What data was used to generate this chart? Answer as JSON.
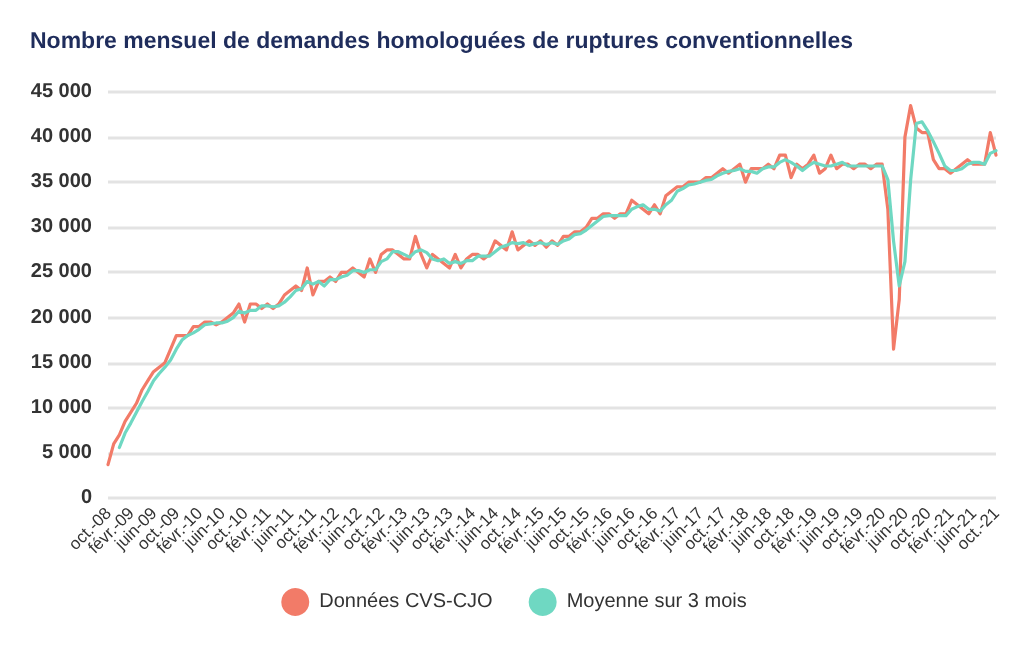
{
  "chart_data": {
    "type": "line",
    "title": "Nombre mensuel de demandes homologuées de ruptures conventionnelles",
    "categories": [
      "oct.-08",
      null,
      null,
      null,
      "févr.-09",
      null,
      null,
      null,
      "juin-09",
      null,
      null,
      null,
      "oct.-09",
      null,
      null,
      null,
      "févr.-10",
      null,
      null,
      null,
      "juin-10",
      null,
      null,
      null,
      "oct.-10",
      null,
      null,
      null,
      "févr.-11",
      null,
      null,
      null,
      "juin-11",
      null,
      null,
      null,
      "oct.-11",
      null,
      null,
      null,
      "févr.-12",
      null,
      null,
      null,
      "juin-12",
      null,
      null,
      null,
      "oct.-12",
      null,
      null,
      null,
      "févr.-13",
      null,
      null,
      null,
      "juin-13",
      null,
      null,
      null,
      "oct.-13",
      null,
      null,
      null,
      "févr.-14",
      null,
      null,
      null,
      "juin-14",
      null,
      null,
      null,
      "oct.-14",
      null,
      null,
      null,
      "févr.-15",
      null,
      null,
      null,
      "juin-15",
      null,
      null,
      null,
      "oct.-15",
      null,
      null,
      null,
      "févr.-16",
      null,
      null,
      null,
      "juin-16",
      null,
      null,
      null,
      "oct.-16",
      null,
      null,
      null,
      "févr.-17",
      null,
      null,
      null,
      "juin-17",
      null,
      null,
      null,
      "oct.-17",
      null,
      null,
      null,
      "févr.-18",
      null,
      null,
      null,
      "juin-18",
      null,
      null,
      null,
      "oct.-18",
      null,
      null,
      null,
      "févr.-19",
      null,
      null,
      null,
      "juin-19",
      null,
      null,
      null,
      "oct.-19",
      null,
      null,
      null,
      "févr.-20",
      null,
      null,
      null,
      "juin-20",
      null,
      null,
      null,
      "oct.-20",
      null,
      null,
      null,
      "févr.-21",
      null,
      null,
      null,
      "juin-21",
      null,
      null,
      null,
      "oct.-21"
    ],
    "series": [
      {
        "name": "Données CVS-CJO",
        "color": "#f27b68",
        "values": [
          3700,
          6000,
          7000,
          8500,
          9500,
          10500,
          12000,
          13000,
          14000,
          14500,
          15000,
          16500,
          18000,
          18000,
          18000,
          19000,
          19000,
          19500,
          19500,
          19200,
          19500,
          20000,
          20500,
          21500,
          19500,
          21500,
          21500,
          21000,
          21500,
          21000,
          21500,
          22500,
          23000,
          23500,
          23000,
          25500,
          22500,
          24000,
          24000,
          24500,
          24000,
          25000,
          25000,
          25500,
          25000,
          24500,
          26500,
          25000,
          27000,
          27500,
          27500,
          27000,
          26500,
          26500,
          29000,
          27000,
          25500,
          27000,
          26500,
          26000,
          25500,
          27000,
          25500,
          26500,
          27000,
          27000,
          26500,
          27000,
          28500,
          28000,
          27500,
          29500,
          27500,
          28000,
          28500,
          28000,
          28500,
          27800,
          28500,
          28000,
          29000,
          29000,
          29500,
          29500,
          30000,
          31000,
          31000,
          31500,
          31500,
          31000,
          31500,
          31500,
          33000,
          32500,
          32000,
          31500,
          32500,
          31500,
          33500,
          34000,
          34500,
          34500,
          35000,
          35000,
          35000,
          35500,
          35500,
          36000,
          36500,
          36000,
          36500,
          37000,
          35000,
          36500,
          36500,
          36500,
          37000,
          36500,
          38000,
          38000,
          35500,
          37000,
          36500,
          37000,
          38000,
          36000,
          36500,
          38000,
          36500,
          37000,
          37000,
          36500,
          37000,
          37000,
          36500,
          37000,
          37000,
          32000,
          16500,
          22000,
          40000,
          43500,
          41000,
          40500,
          40500,
          37500,
          36500,
          36500,
          36000,
          36500,
          37000,
          37500,
          37000,
          37000,
          37000,
          40500,
          38000
        ]
      },
      {
        "name": "Moyenne sur 3 mois",
        "color": "#6fd8c2",
        "values": [
          null,
          null,
          5600,
          7200,
          8300,
          9500,
          10700,
          11800,
          13000,
          13800,
          14500,
          15300,
          16500,
          17500,
          18000,
          18300,
          18700,
          19200,
          19300,
          19400,
          19400,
          19600,
          20000,
          20700,
          20500,
          20800,
          20800,
          21300,
          21300,
          21200,
          21300,
          21700,
          22300,
          23000,
          23200,
          24000,
          23700,
          24000,
          23500,
          24200,
          24200,
          24500,
          24700,
          25200,
          25200,
          25000,
          25300,
          25300,
          26200,
          26500,
          27300,
          27300,
          27000,
          26700,
          27300,
          27500,
          27200,
          26500,
          26300,
          26500,
          26000,
          26200,
          26000,
          26300,
          26300,
          26800,
          26800,
          26800,
          27300,
          27800,
          28000,
          28300,
          28200,
          28300,
          28000,
          28200,
          28300,
          28100,
          28300,
          28100,
          28500,
          28700,
          29200,
          29300,
          29700,
          30200,
          30700,
          31200,
          31300,
          31300,
          31300,
          31300,
          32000,
          32300,
          32500,
          32000,
          32000,
          31800,
          32500,
          33000,
          34000,
          34300,
          34700,
          34800,
          35000,
          35200,
          35300,
          35700,
          36000,
          36200,
          36300,
          36500,
          36200,
          36200,
          36000,
          36500,
          36700,
          36700,
          37200,
          37500,
          37200,
          36800,
          36300,
          36800,
          37200,
          37000,
          36800,
          36800,
          37000,
          37200,
          36800,
          36800,
          36800,
          36800,
          36800,
          36800,
          36800,
          35300,
          28500,
          23500,
          26200,
          35200,
          41500,
          41700,
          40700,
          39500,
          38200,
          36800,
          36300,
          36300,
          36500,
          37000,
          37200,
          37200,
          37000,
          38200,
          38500
        ]
      }
    ],
    "ylim": [
      0,
      45000
    ],
    "yticks": [
      {
        "value": 0,
        "label": "0"
      },
      {
        "value": 5000,
        "label": "5 000"
      },
      {
        "value": 10000,
        "label": "10 000"
      },
      {
        "value": 15000,
        "label": "15 000"
      },
      {
        "value": 20000,
        "label": "20 000"
      },
      {
        "value": 25000,
        "label": "25 000"
      },
      {
        "value": 30000,
        "label": "30 000"
      },
      {
        "value": 35000,
        "label": "35 000"
      },
      {
        "value": 40000,
        "label": "40 000"
      },
      {
        "value": 45000,
        "label": "45 000"
      }
    ],
    "grid": "y",
    "legend": "bottom",
    "marker": "none",
    "line_style": "solid"
  }
}
